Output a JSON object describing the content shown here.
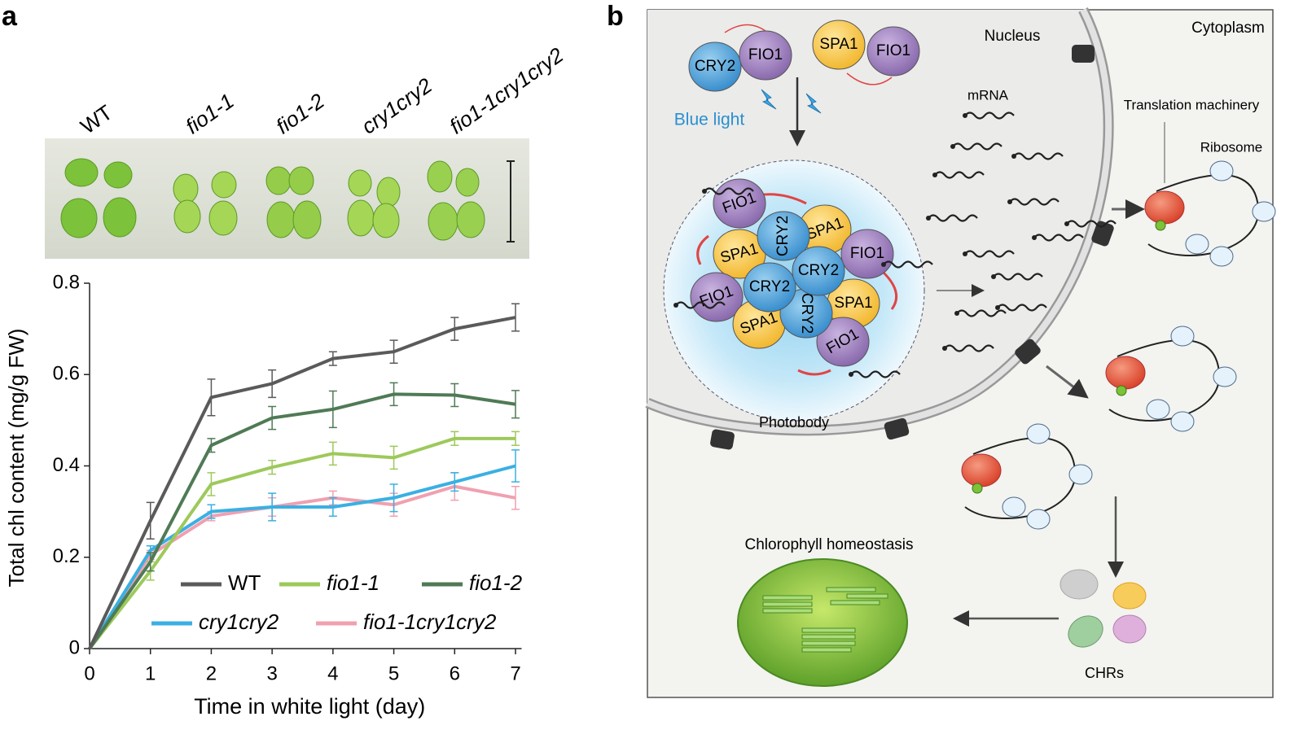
{
  "panel_labels": [
    "a",
    "b"
  ],
  "photo": {
    "labels": [
      "WT",
      "fio1-1",
      "fio1-2",
      "cry1cry2",
      "fio1-1cry1cry2"
    ]
  },
  "chart_data": {
    "type": "line",
    "y_label": "Total chl content (mg/g FW)",
    "x_label": "Time in white light (day)",
    "x": [
      0,
      1,
      2,
      3,
      4,
      5,
      6,
      7
    ],
    "xlim": [
      0,
      7.1
    ],
    "xticks": [
      0,
      1,
      2,
      3,
      4,
      5,
      6,
      7
    ],
    "ylim": [
      0,
      0.8
    ],
    "yticks": [
      0,
      0.2,
      0.4,
      0.6,
      0.8
    ],
    "series": [
      {
        "name": "WT",
        "color": "#5a5a5a",
        "values": [
          0,
          0.28,
          0.55,
          0.58,
          0.635,
          0.65,
          0.7,
          0.725
        ],
        "errors": [
          null,
          0.04,
          0.04,
          0.03,
          0.015,
          0.025,
          0.025,
          0.03
        ]
      },
      {
        "name": "fio1-1",
        "color": "#9dc95b",
        "values": [
          0,
          0.17,
          0.36,
          0.397,
          0.427,
          0.418,
          0.46,
          0.46
        ],
        "errors": [
          null,
          0.02,
          0.025,
          0.015,
          0.025,
          0.025,
          0.015,
          0.015
        ]
      },
      {
        "name": "fio1-2",
        "color": "#4f7a55",
        "values": [
          0,
          0.19,
          0.445,
          0.505,
          0.524,
          0.557,
          0.555,
          0.535
        ],
        "errors": [
          null,
          0.02,
          0.015,
          0.025,
          0.04,
          0.025,
          0.025,
          0.03
        ]
      },
      {
        "name": "cry1cry2",
        "color": "#3ab0e2",
        "values": [
          0,
          0.215,
          0.3,
          0.31,
          0.31,
          0.33,
          0.365,
          0.4
        ],
        "errors": [
          null,
          0.01,
          0.015,
          0.03,
          0.02,
          0.03,
          0.02,
          0.035
        ]
      },
      {
        "name": "fio1-1cry1cry2",
        "color": "#f0a0b0",
        "values": [
          0,
          0.205,
          0.29,
          0.31,
          0.33,
          0.315,
          0.355,
          0.33
        ],
        "errors": [
          null,
          0.01,
          0.01,
          0.02,
          0.015,
          0.025,
          0.03,
          0.025
        ]
      }
    ]
  },
  "diagram": {
    "top_pair_1": [
      "CRY2",
      "FIO1"
    ],
    "top_pair_2": [
      "SPA1",
      "FIO1"
    ],
    "blue_light": "Blue light",
    "nucleus": "Nucleus",
    "cytoplasm": "Cytoplasm",
    "mrna": "mRNA",
    "translation_machinery": "Translation machinery",
    "ribosome": "Ribosome",
    "photobody": "Photobody",
    "chlorophyll_homeostasis": "Chlorophyll homeostasis",
    "chrs": "CHRs",
    "photobody_proteins": [
      "CRY2",
      "CRY2",
      "CRY2",
      "FIO1",
      "SPA1",
      "FIO1",
      "SPA1",
      "FIO1",
      "SPA1",
      "SPA1",
      "FIO1",
      "CRY2"
    ]
  }
}
